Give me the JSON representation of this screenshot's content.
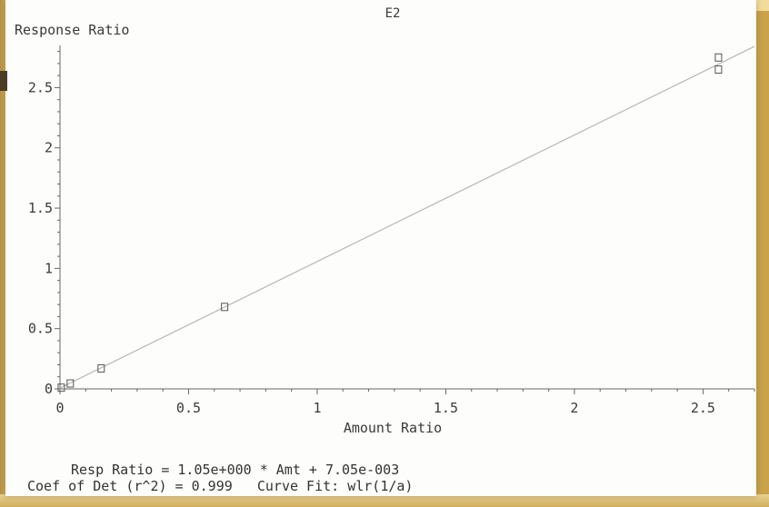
{
  "chart_data": {
    "type": "scatter",
    "title": "E2",
    "xlabel": "Amount Ratio",
    "ylabel": "Response Ratio",
    "xlim": [
      0,
      2.7
    ],
    "ylim": [
      0,
      2.85
    ],
    "x_ticks": [
      0,
      0.5,
      1,
      1.5,
      2,
      2.5
    ],
    "x_tick_labels": [
      "0",
      "0.5",
      "1",
      "1.5",
      "2",
      "2.5"
    ],
    "y_ticks": [
      0,
      0.5,
      1,
      1.5,
      2,
      2.5
    ],
    "y_tick_labels": [
      "0",
      "0.5",
      "1",
      "1.5",
      "2",
      "2.5"
    ],
    "points": [
      {
        "x": 0.005,
        "y": 0.01
      },
      {
        "x": 0.04,
        "y": 0.045
      },
      {
        "x": 0.16,
        "y": 0.17
      },
      {
        "x": 0.64,
        "y": 0.68
      },
      {
        "x": 2.56,
        "y": 2.65
      },
      {
        "x": 2.56,
        "y": 2.75
      }
    ],
    "fit": {
      "slope": 1.05,
      "intercept": 0.00705
    },
    "grid": false,
    "colors": {
      "line": "#b8b8b8",
      "marker": "#555555",
      "axis": "#666666",
      "text": "#3a3a3a"
    }
  },
  "footer": {
    "equation": "Resp Ratio = 1.05e+000 * Amt + 7.05e-003",
    "stats": "Coef of Det (r^2) = 0.999   Curve Fit: wlr(1/a)"
  }
}
